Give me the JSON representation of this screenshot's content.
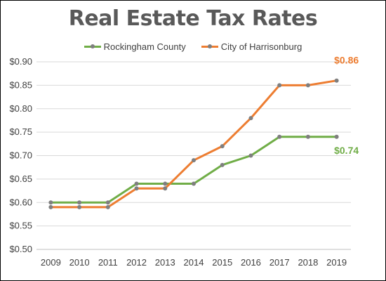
{
  "chart_data": {
    "type": "line",
    "title": "Real Estate Tax Rates",
    "x": [
      "2009",
      "2010",
      "2011",
      "2012",
      "2013",
      "2014",
      "2015",
      "2016",
      "2017",
      "2018",
      "2019"
    ],
    "series": [
      {
        "name": "Rockingham County",
        "color": "#70AD47",
        "values": [
          0.6,
          0.6,
          0.6,
          0.64,
          0.64,
          0.64,
          0.68,
          0.7,
          0.74,
          0.74,
          0.74
        ],
        "end_label": "$0.74"
      },
      {
        "name": "City of Harrisonburg",
        "color": "#ED7D31",
        "values": [
          0.59,
          0.59,
          0.59,
          0.63,
          0.63,
          0.69,
          0.72,
          0.78,
          0.85,
          0.85,
          0.86
        ],
        "end_label": "$0.86"
      }
    ],
    "yticks": [
      "$0.50",
      "$0.55",
      "$0.60",
      "$0.65",
      "$0.70",
      "$0.75",
      "$0.80",
      "$0.85",
      "$0.90"
    ],
    "ylim": [
      0.5,
      0.9
    ],
    "grid": true,
    "legend_position": "top",
    "marker_color": "#7F7F7F"
  }
}
